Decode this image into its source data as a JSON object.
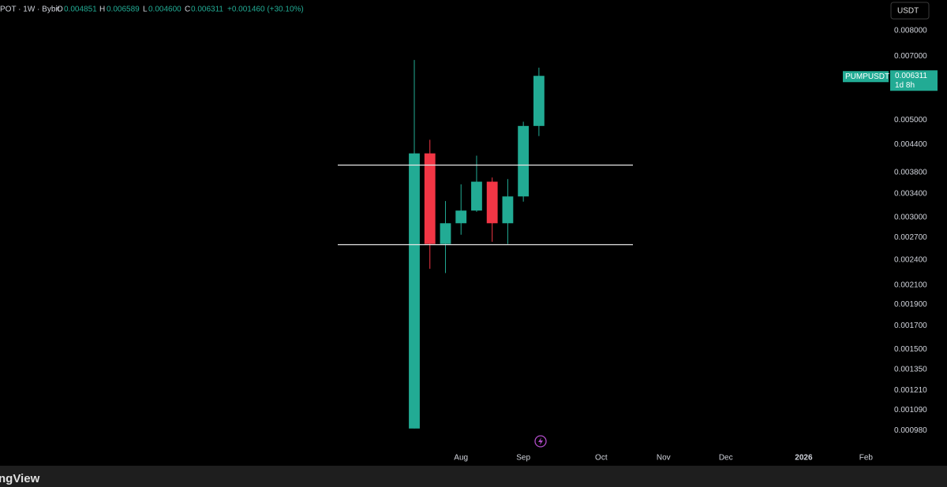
{
  "chart_data": {
    "type": "candlestick",
    "header": {
      "symbol": "POT · 1W · Bybit",
      "open_prefix": "O",
      "high_prefix": "H",
      "low_prefix": "L",
      "close_prefix": "C",
      "open": "0.004851",
      "high": "0.006589",
      "low": "0.004600",
      "close": "0.006311",
      "change": "+0.001460 (+30.10%)"
    },
    "currency_button": "USDT",
    "symbol_tag": "PUMPUSDT",
    "price_tag": "0.006311",
    "countdown": "1d 8h",
    "brand": "ngView",
    "x": [
      0,
      1,
      2,
      3,
      4,
      5,
      6,
      7,
      8
    ],
    "open": [
      0.00099,
      0.0042,
      0.00261,
      0.00291,
      0.00311,
      0.00362,
      0.00291,
      0.00335,
      0.004851
    ],
    "high": [
      0.00686,
      0.00451,
      0.00327,
      0.00357,
      0.00415,
      0.0037,
      0.00367,
      0.00496,
      0.006589
    ],
    "low": [
      0.00099,
      0.00229,
      0.00224,
      0.00274,
      0.00309,
      0.00264,
      0.00261,
      0.00326,
      0.0046
    ],
    "close": [
      0.0042,
      0.00261,
      0.00291,
      0.00311,
      0.00362,
      0.00291,
      0.00335,
      0.004851,
      0.006311
    ],
    "up_color": "#22ab94",
    "down_color": "#f23645",
    "horizontal_lines": [
      0.00395,
      0.0026
    ],
    "log_scale": true,
    "xlim": [
      -26.6,
      30.4
    ],
    "xticks": [
      {
        "value": 3,
        "label": "Aug"
      },
      {
        "value": 7,
        "label": "Sep"
      },
      {
        "value": 12,
        "label": "Oct"
      },
      {
        "value": 16,
        "label": "Nov"
      },
      {
        "value": 20,
        "label": "Dec"
      },
      {
        "value": 25,
        "label": "2026"
      },
      {
        "value": 29,
        "label": "Feb"
      }
    ],
    "ylim": [
      0.00087,
      0.0094
    ],
    "yticks": [
      {
        "value": 0.008,
        "label": "0.008000"
      },
      {
        "value": 0.007,
        "label": "0.007000"
      },
      {
        "value": 0.005,
        "label": "0.005000"
      },
      {
        "value": 0.0044,
        "label": "0.004400"
      },
      {
        "value": 0.0038,
        "label": "0.003800"
      },
      {
        "value": 0.0034,
        "label": "0.003400"
      },
      {
        "value": 0.003,
        "label": "0.003000"
      },
      {
        "value": 0.0027,
        "label": "0.002700"
      },
      {
        "value": 0.0024,
        "label": "0.002400"
      },
      {
        "value": 0.0021,
        "label": "0.002100"
      },
      {
        "value": 0.0019,
        "label": "0.001900"
      },
      {
        "value": 0.0017,
        "label": "0.001700"
      },
      {
        "value": 0.0015,
        "label": "0.001500"
      },
      {
        "value": 0.00135,
        "label": "0.001350"
      },
      {
        "value": 0.00121,
        "label": "0.001210"
      },
      {
        "value": 0.00109,
        "label": "0.001090"
      },
      {
        "value": 0.00098,
        "label": "0.000980"
      }
    ]
  }
}
